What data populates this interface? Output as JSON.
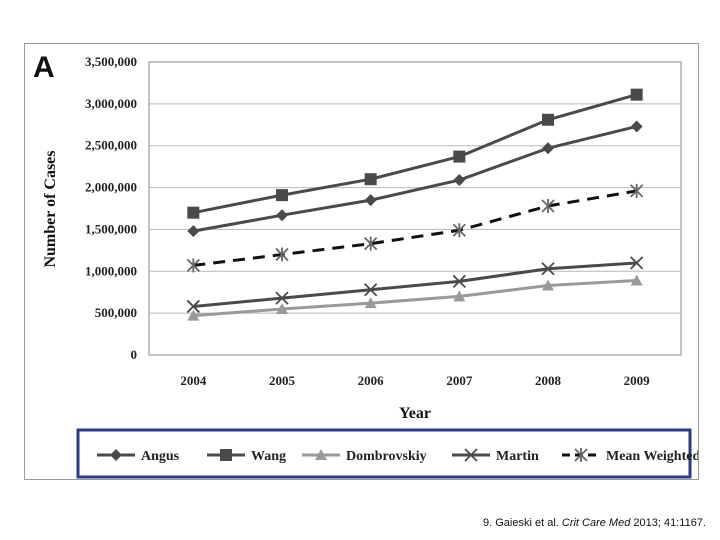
{
  "panel_label": "A",
  "citation": {
    "prefix": "9. Gaieski et al. ",
    "journal": "Crit Care Med",
    "suffix": " 2013; 41:1167."
  },
  "chart_data": {
    "type": "line",
    "title": "",
    "xlabel": "Year",
    "ylabel": "Number of Cases",
    "categories": [
      "2004",
      "2005",
      "2006",
      "2007",
      "2008",
      "2009"
    ],
    "ylim": [
      0,
      3500000
    ],
    "yticks": [
      0,
      500000,
      1000000,
      1500000,
      2000000,
      2500000,
      3000000,
      3500000
    ],
    "ytick_labels": [
      "0",
      "500,000",
      "1,000,000",
      "1,500,000",
      "2,000,000",
      "2,500,000",
      "3,000,000",
      "3,500,000"
    ],
    "grid": "horizontal",
    "legend_position": "bottom",
    "series": [
      {
        "name": "Angus",
        "values": [
          1480000,
          1670000,
          1850000,
          2090000,
          2470000,
          2730000
        ],
        "marker": "diamond",
        "color": "#4a4a4a",
        "dash": "solid"
      },
      {
        "name": "Wang",
        "values": [
          1700000,
          1910000,
          2100000,
          2370000,
          2810000,
          3110000
        ],
        "marker": "square",
        "color": "#4a4a4a",
        "dash": "solid"
      },
      {
        "name": "Dombrovskiy",
        "values": [
          470000,
          550000,
          620000,
          700000,
          830000,
          890000
        ],
        "marker": "triangle",
        "color": "#9a9a9a",
        "dash": "solid"
      },
      {
        "name": "Martin",
        "values": [
          580000,
          680000,
          780000,
          880000,
          1030000,
          1100000
        ],
        "marker": "x",
        "color": "#4a4a4a",
        "dash": "solid"
      },
      {
        "name": "Mean Weighted",
        "values": [
          1070000,
          1200000,
          1330000,
          1490000,
          1780000,
          1960000
        ],
        "marker": "asterisk",
        "color": "#111111",
        "dash": "dashed"
      }
    ]
  }
}
